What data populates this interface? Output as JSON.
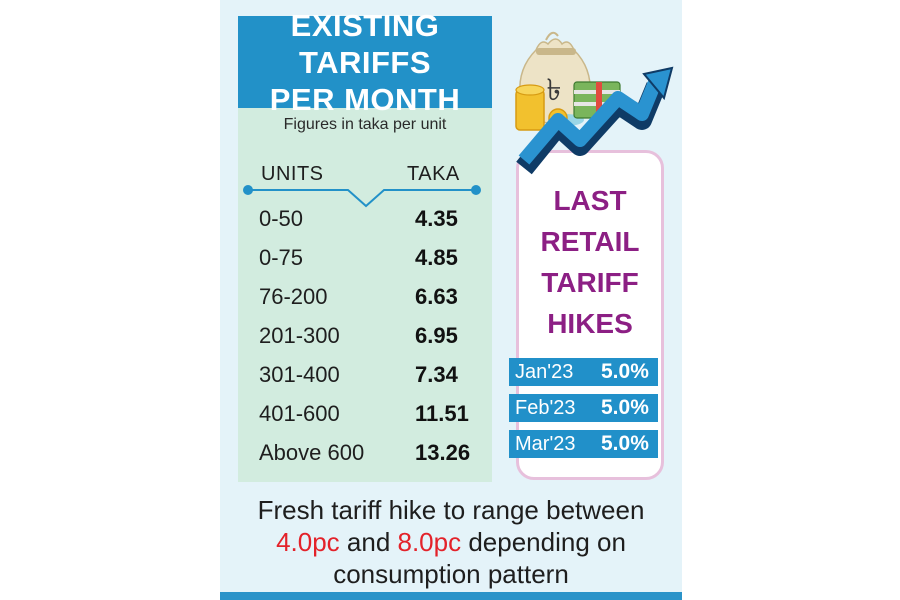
{
  "header": {
    "title_line1": "EXISTING TARIFFS",
    "title_line2": "PER MONTH",
    "note": "Figures in taka per unit"
  },
  "chart_data": {
    "type": "table",
    "columns": [
      "UNITS",
      "TAKA"
    ],
    "rows": [
      {
        "range": "0-50",
        "value": "4.35"
      },
      {
        "range": "0-75",
        "value": "4.85"
      },
      {
        "range": "76-200",
        "value": "6.63"
      },
      {
        "range": "201-300",
        "value": "6.95"
      },
      {
        "range": "301-400",
        "value": "7.34"
      },
      {
        "range": "401-600",
        "value": "11.51"
      },
      {
        "range": "Above 600",
        "value": "13.26"
      }
    ]
  },
  "hikes": {
    "title_lines": [
      "LAST",
      "RETAIL",
      "TARIFF",
      "HIKES"
    ],
    "items": [
      {
        "month": "Jan'23",
        "value": "5.0%"
      },
      {
        "month": "Feb'23",
        "value": "5.0%"
      },
      {
        "month": "Mar'23",
        "value": "5.0%"
      }
    ]
  },
  "footer": {
    "line1": "Fresh tariff hike to range between",
    "low": "4.0pc",
    "mid": " and ",
    "high": "8.0pc",
    "after": " depending on",
    "line3": "consumption pattern"
  },
  "illustration": {
    "icons": [
      "money-bag-icon",
      "taka-symbol-icon",
      "coin-stack-icon",
      "banknote-stack-icon",
      "rising-arrow-icon"
    ]
  },
  "colors": {
    "accent_blue": "#2291c8",
    "panel_green": "#d2ecdf",
    "background": "#e4f3f9",
    "title_purple": "#8c1f84",
    "highlight_red": "#e3222a"
  }
}
